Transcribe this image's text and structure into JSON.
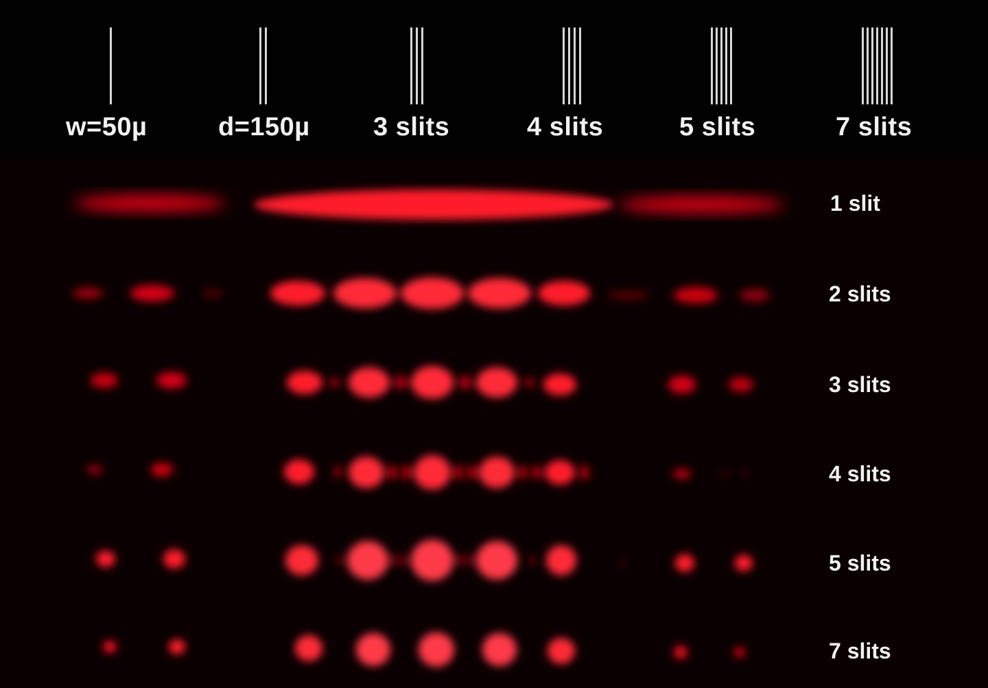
{
  "top_labels": {
    "width": "w=50µ",
    "separation": "d=150µ",
    "slits3": "3 slits",
    "slits4": "4 slits",
    "slits5": "5 slits",
    "slits7": "7 slits"
  },
  "row_labels": {
    "r1": "1 slit",
    "r2": "2 slits",
    "r3": "3 slits",
    "r4": "4 slits",
    "r5": "5 slits",
    "r7": "7 slits"
  },
  "colors": {
    "background_top": "#010101",
    "background_bottom": "#0b0001",
    "slit_lines": "#d8d8d8",
    "laser_red": "#ff1a2a",
    "label_text": "#f2f2f2"
  }
}
